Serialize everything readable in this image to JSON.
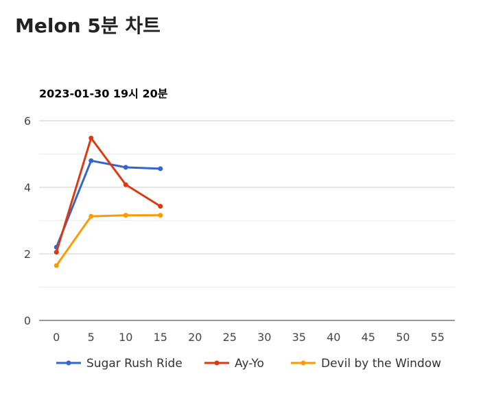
{
  "page": {
    "title": "Melon 5분 차트"
  },
  "chart_data": {
    "type": "line",
    "title": "2023-01-30 19시 20분",
    "xlabel": "",
    "ylabel": "",
    "xlim": [
      -2.5,
      57.5
    ],
    "ylim": [
      0,
      6
    ],
    "x_ticks": [
      0,
      5,
      10,
      15,
      20,
      25,
      30,
      35,
      40,
      45,
      50,
      55
    ],
    "y_ticks": [
      0,
      2,
      4,
      6
    ],
    "grid": true,
    "legend_position": "bottom",
    "x": [
      0,
      5,
      10,
      15
    ],
    "series": [
      {
        "name": "Sugar Rush Ride",
        "color": "#3366cc",
        "values": [
          2.2,
          4.8,
          4.6,
          4.56
        ]
      },
      {
        "name": "Ay-Yo",
        "color": "#dc3912",
        "values": [
          2.05,
          5.48,
          4.08,
          3.43
        ]
      },
      {
        "name": "Devil by the Window",
        "color": "#ff9900",
        "values": [
          1.65,
          3.13,
          3.16,
          3.16
        ]
      }
    ]
  }
}
